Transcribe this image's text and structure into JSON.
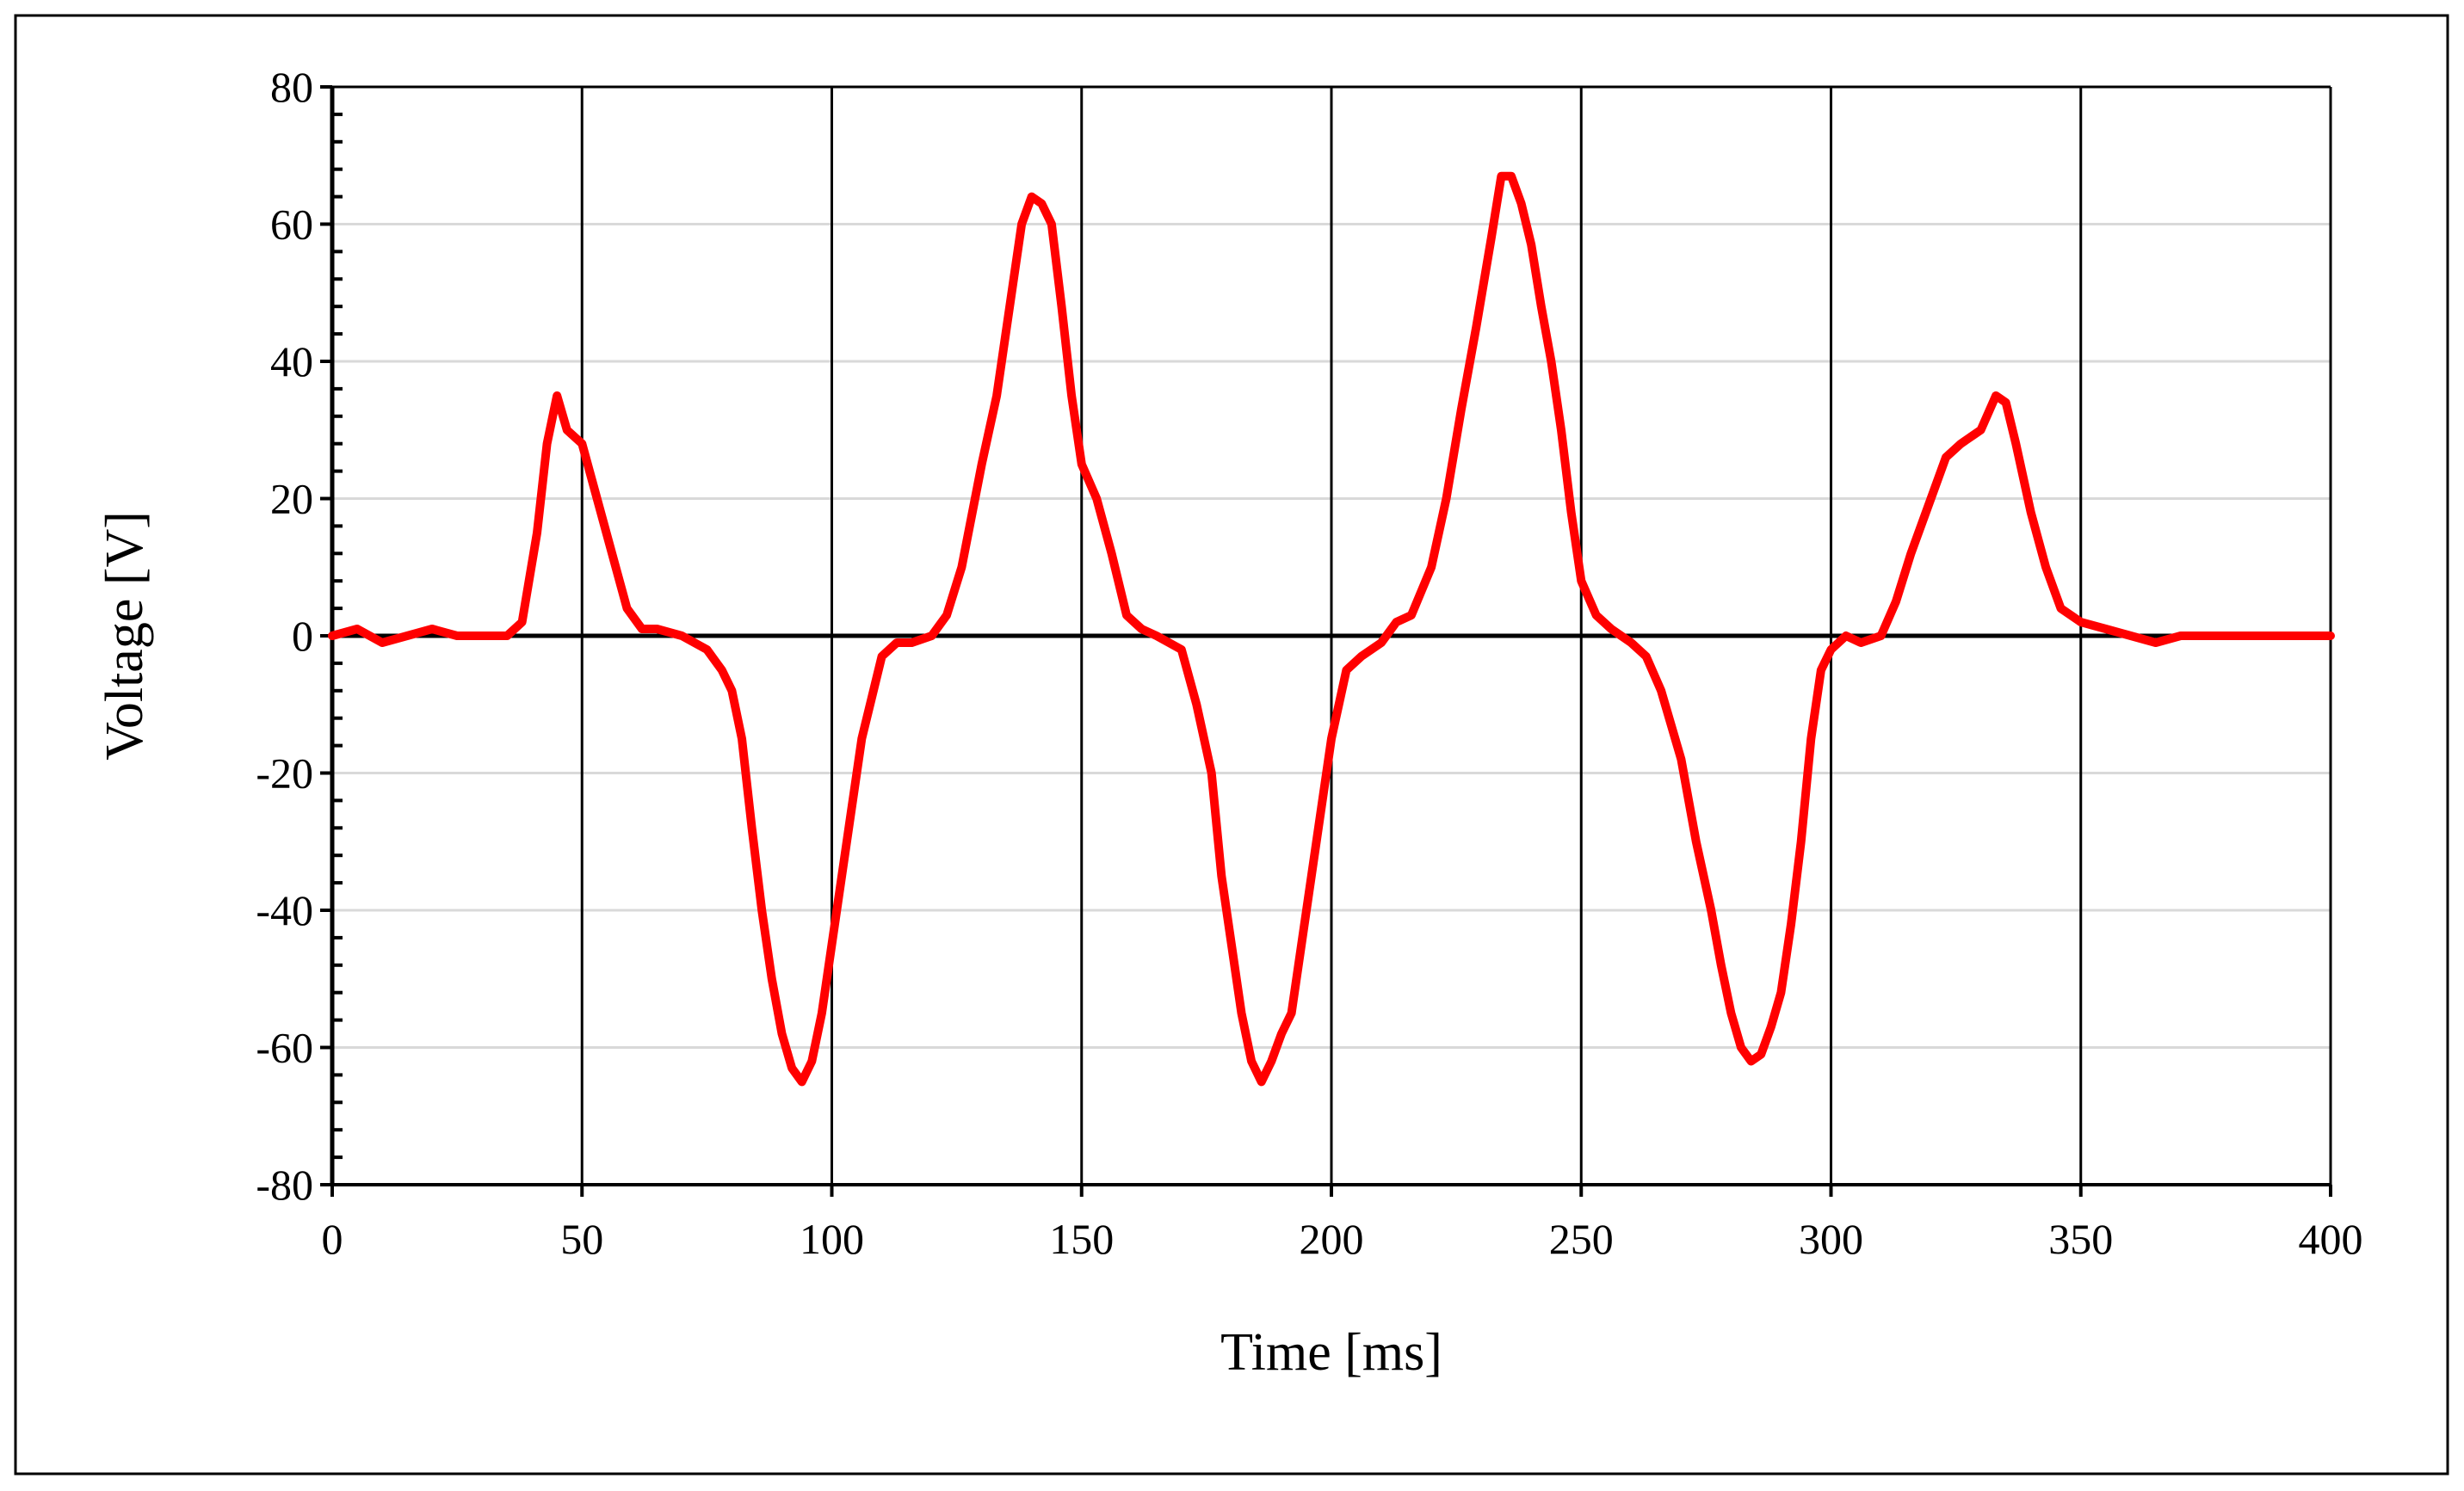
{
  "chart_data": {
    "type": "line",
    "title": "",
    "xlabel": "Time [ms]",
    "ylabel": "Voltage [V]",
    "xlim": [
      0,
      400
    ],
    "ylim": [
      -80,
      80
    ],
    "x_ticks": [
      0,
      50,
      100,
      150,
      200,
      250,
      300,
      350,
      400
    ],
    "y_ticks": [
      80,
      60,
      40,
      20,
      0,
      -20,
      -40,
      -60,
      -80
    ],
    "grid": "vertical major gridlines black; horizontal gridlines light gray",
    "legend": "none",
    "series": [
      {
        "color": "#ff0000",
        "x": [
          0,
          5,
          10,
          15,
          20,
          25,
          30,
          35,
          38,
          41,
          43,
          45,
          47,
          50,
          53,
          56,
          59,
          62,
          65,
          70,
          75,
          78,
          80,
          82,
          84,
          86,
          88,
          90,
          92,
          94,
          96,
          98,
          100,
          103,
          106,
          110,
          113,
          116,
          120,
          123,
          126,
          130,
          133,
          136,
          138,
          140,
          142,
          144,
          146,
          148,
          150,
          153,
          156,
          159,
          162,
          165,
          170,
          173,
          176,
          178,
          180,
          182,
          184,
          186,
          188,
          190,
          192,
          194,
          196,
          198,
          200,
          203,
          206,
          210,
          213,
          216,
          220,
          223,
          226,
          229,
          232,
          234,
          236,
          238,
          240,
          242,
          244,
          246,
          248,
          250,
          253,
          256,
          260,
          263,
          266,
          270,
          273,
          276,
          278,
          280,
          282,
          284,
          286,
          288,
          290,
          292,
          294,
          296,
          298,
          300,
          303,
          306,
          310,
          313,
          316,
          320,
          323,
          326,
          330,
          333,
          335,
          337,
          340,
          343,
          346,
          350,
          355,
          360,
          365,
          370,
          375,
          380,
          385,
          390,
          395,
          400
        ],
        "values": [
          0,
          1,
          -1,
          0,
          1,
          0,
          0,
          0,
          2,
          15,
          28,
          35,
          30,
          28,
          20,
          12,
          4,
          1,
          1,
          0,
          -2,
          -5,
          -8,
          -15,
          -28,
          -40,
          -50,
          -58,
          -63,
          -65,
          -62,
          -55,
          -45,
          -30,
          -15,
          -3,
          -1,
          -1,
          0,
          3,
          10,
          25,
          35,
          50,
          60,
          64,
          63,
          60,
          48,
          35,
          25,
          20,
          12,
          3,
          1,
          0,
          -2,
          -10,
          -20,
          -35,
          -45,
          -55,
          -62,
          -65,
          -62,
          -58,
          -55,
          -45,
          -35,
          -25,
          -15,
          -5,
          -3,
          -1,
          2,
          3,
          10,
          20,
          33,
          45,
          58,
          67,
          67,
          63,
          57,
          48,
          40,
          30,
          18,
          8,
          3,
          1,
          -1,
          -3,
          -8,
          -18,
          -30,
          -40,
          -48,
          -55,
          -60,
          -62,
          -61,
          -57,
          -52,
          -42,
          -30,
          -15,
          -5,
          -2,
          0,
          -1,
          0,
          5,
          12,
          20,
          26,
          28,
          30,
          35,
          34,
          28,
          18,
          10,
          4,
          2,
          1,
          0,
          -1,
          0,
          0,
          0,
          0,
          0,
          0,
          0
        ]
      }
    ]
  }
}
